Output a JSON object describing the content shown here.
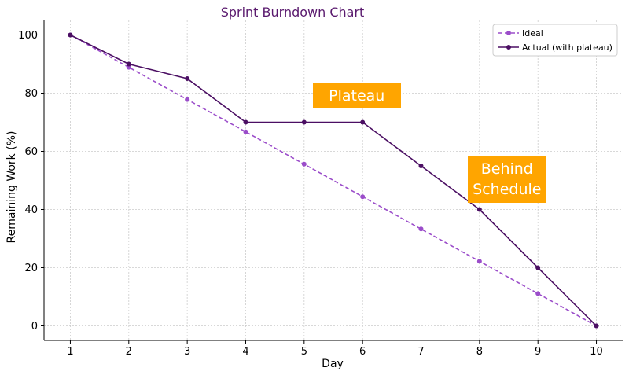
{
  "chart_data": {
    "type": "line",
    "title": "Sprint Burndown Chart",
    "xlabel": "Day",
    "ylabel": "Remaining Work (%)",
    "x": [
      1,
      2,
      3,
      4,
      5,
      6,
      7,
      8,
      9,
      10
    ],
    "xticks": [
      "1",
      "2",
      "3",
      "4",
      "5",
      "6",
      "7",
      "8",
      "9",
      "10"
    ],
    "yticks": [
      "0",
      "20",
      "40",
      "60",
      "80",
      "100"
    ],
    "ylim": [
      -5,
      105
    ],
    "xlim": [
      0.55,
      10.45
    ],
    "grid": true,
    "legend_position": "top-right",
    "series": [
      {
        "name": "Ideal",
        "style": "dashed",
        "color": "#9b4dca",
        "values": [
          100,
          88.9,
          77.8,
          66.7,
          55.6,
          44.4,
          33.3,
          22.2,
          11.1,
          0
        ]
      },
      {
        "name": "Actual (with plateau)",
        "style": "solid",
        "color": "#4b0f63",
        "values": [
          100,
          90,
          85,
          70,
          70,
          70,
          55,
          40,
          20,
          0
        ]
      }
    ],
    "annotations": [
      {
        "text": "Plateau",
        "x": 5.9,
        "y": 79
      },
      {
        "text": "Behind Schedule",
        "x": 8.47,
        "y": 50.5
      }
    ]
  },
  "colors": {
    "title": "#5a1a6e",
    "annotation_bg": "#ffa500",
    "annotation_text": "#ffffff",
    "grid": "#cccccc"
  }
}
